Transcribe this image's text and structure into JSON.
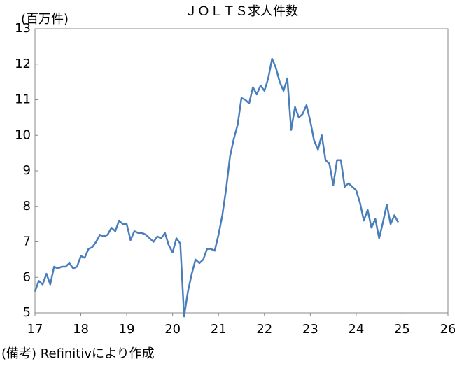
{
  "chart_data": {
    "type": "line",
    "title": "ＪＯＬＴＳ求人件数",
    "y_label": "(百万件)",
    "note": "(備考) Refinitivにより作成",
    "xlim": [
      17,
      26
    ],
    "xticks": [
      17,
      18,
      19,
      20,
      21,
      22,
      23,
      24,
      25,
      26
    ],
    "ylim": [
      5,
      13
    ],
    "yticks": [
      5,
      6,
      7,
      8,
      9,
      10,
      11,
      12,
      13
    ],
    "grid": false,
    "x": [
      17,
      17.083,
      17.167,
      17.25,
      17.333,
      17.417,
      17.5,
      17.583,
      17.667,
      17.75,
      17.833,
      17.917,
      18,
      18.083,
      18.167,
      18.25,
      18.333,
      18.417,
      18.5,
      18.583,
      18.667,
      18.75,
      18.833,
      18.917,
      19,
      19.083,
      19.167,
      19.25,
      19.333,
      19.417,
      19.5,
      19.583,
      19.667,
      19.75,
      19.833,
      19.917,
      20,
      20.083,
      20.167,
      20.25,
      20.333,
      20.417,
      20.5,
      20.583,
      20.667,
      20.75,
      20.833,
      20.917,
      21,
      21.083,
      21.167,
      21.25,
      21.333,
      21.417,
      21.5,
      21.583,
      21.667,
      21.75,
      21.833,
      21.917,
      22,
      22.083,
      22.167,
      22.25,
      22.333,
      22.417,
      22.5,
      22.583,
      22.667,
      22.75,
      22.833,
      22.917,
      23,
      23.083,
      23.167,
      23.25,
      23.333,
      23.417,
      23.5,
      23.583,
      23.667,
      23.75,
      23.833,
      23.917,
      24,
      24.083,
      24.167,
      24.25,
      24.333,
      24.417,
      24.5,
      24.583,
      24.667,
      24.75,
      24.833,
      24.917
    ],
    "series": [
      {
        "color": "#4a7ebb",
        "values": [
          5.6,
          5.9,
          5.8,
          6.1,
          5.8,
          6.3,
          6.25,
          6.3,
          6.3,
          6.4,
          6.25,
          6.3,
          6.6,
          6.55,
          6.8,
          6.85,
          7.0,
          7.2,
          7.15,
          7.2,
          7.4,
          7.3,
          7.6,
          7.5,
          7.5,
          7.05,
          7.3,
          7.25,
          7.25,
          7.2,
          7.1,
          7.0,
          7.15,
          7.1,
          7.25,
          6.9,
          6.7,
          7.1,
          6.95,
          4.9,
          5.6,
          6.1,
          6.5,
          6.4,
          6.5,
          6.8,
          6.8,
          6.75,
          7.2,
          7.75,
          8.5,
          9.4,
          9.9,
          10.3,
          11.05,
          11.0,
          10.9,
          11.35,
          11.15,
          11.4,
          11.25,
          11.6,
          12.15,
          11.9,
          11.5,
          11.25,
          11.6,
          10.15,
          10.8,
          10.5,
          10.6,
          10.85,
          10.4,
          9.85,
          9.6,
          10.0,
          9.3,
          9.2,
          8.6,
          9.3,
          9.3,
          8.55,
          8.65,
          8.55,
          8.45,
          8.1,
          7.6,
          7.9,
          7.4,
          7.65,
          7.1,
          7.55,
          8.05,
          7.5,
          7.75,
          7.55
        ]
      }
    ]
  }
}
